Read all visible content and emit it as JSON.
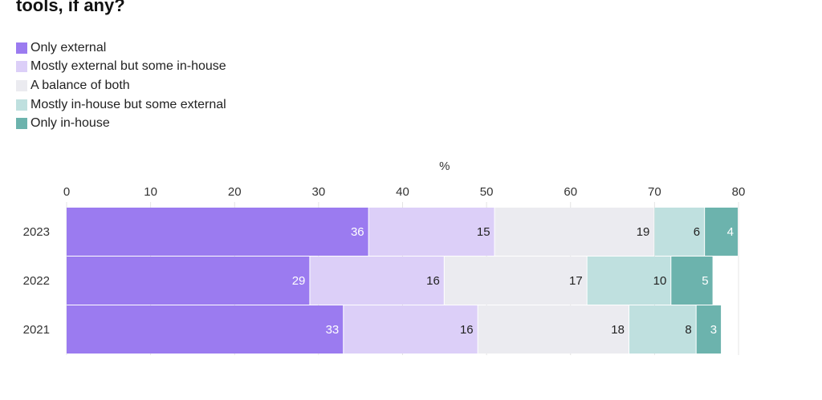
{
  "title": "tools, if any?",
  "chart_data": {
    "type": "bar",
    "orientation": "horizontal",
    "stacked": true,
    "title": "tools, if any?",
    "xunit": "%",
    "xlim": [
      0,
      80
    ],
    "xticks": [
      0,
      10,
      20,
      30,
      40,
      50,
      60,
      70,
      80
    ],
    "categories": [
      "2023",
      "2022",
      "2021"
    ],
    "legend_position": "top-left",
    "series": [
      {
        "name": "Only external",
        "color": "#9b7bf0",
        "label_color": "#ffffff",
        "values": [
          36,
          29,
          33
        ]
      },
      {
        "name": "Mostly external but some in-house",
        "color": "#dccff8",
        "label_color": "#222222",
        "values": [
          15,
          16,
          16
        ]
      },
      {
        "name": "A balance of both",
        "color": "#ebebf0",
        "label_color": "#222222",
        "values": [
          19,
          17,
          18
        ]
      },
      {
        "name": "Mostly in-house but some external",
        "color": "#bfe0df",
        "label_color": "#222222",
        "values": [
          6,
          10,
          8
        ]
      },
      {
        "name": "Only in-house",
        "color": "#6cb3ad",
        "label_color": "#ffffff",
        "values": [
          4,
          5,
          3
        ]
      }
    ]
  }
}
